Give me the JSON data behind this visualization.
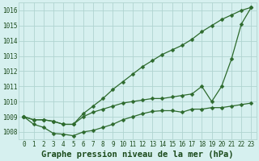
{
  "title": "Graphe pression niveau de la mer (hPa)",
  "xlabel_hours": [
    0,
    1,
    2,
    3,
    4,
    5,
    6,
    7,
    8,
    9,
    10,
    11,
    12,
    13,
    14,
    15,
    16,
    17,
    18,
    19,
    20,
    21,
    22,
    23
  ],
  "series_high": [
    1009.0,
    1008.8,
    1008.8,
    1008.7,
    1008.5,
    1008.5,
    1009.2,
    1009.7,
    1010.2,
    1010.8,
    1011.3,
    1011.8,
    1012.3,
    1012.7,
    1013.1,
    1013.4,
    1013.7,
    1014.1,
    1014.6,
    1015.0,
    1015.4,
    1015.7,
    1016.0,
    1016.2
  ],
  "series_mid": [
    1009.0,
    1008.8,
    1008.8,
    1008.7,
    1008.5,
    1008.5,
    1009.0,
    1009.3,
    1009.5,
    1009.7,
    1009.9,
    1010.0,
    1010.1,
    1010.2,
    1010.2,
    1010.3,
    1010.4,
    1010.5,
    1011.0,
    1010.0,
    1011.0,
    1012.8,
    1015.1,
    1016.2
  ],
  "series_low": [
    1009.0,
    1008.5,
    1008.3,
    1007.9,
    1007.85,
    1007.75,
    1008.0,
    1008.1,
    1008.3,
    1008.5,
    1008.8,
    1009.0,
    1009.2,
    1009.35,
    1009.4,
    1009.4,
    1009.3,
    1009.5,
    1009.5,
    1009.6,
    1009.6,
    1009.7,
    1009.8,
    1009.9
  ],
  "ylim": [
    1007.5,
    1016.5
  ],
  "yticks": [
    1008,
    1009,
    1010,
    1011,
    1012,
    1013,
    1014,
    1015,
    1016
  ],
  "line_color": "#2d6a2d",
  "bg_color": "#d6f0ef",
  "grid_color": "#b0d4d0",
  "title_color": "#1a4a1a",
  "tick_label_color": "#1a4a1a",
  "markersize": 2.5,
  "linewidth": 0.9,
  "title_fontsize": 7.5,
  "tick_fontsize": 5.5
}
